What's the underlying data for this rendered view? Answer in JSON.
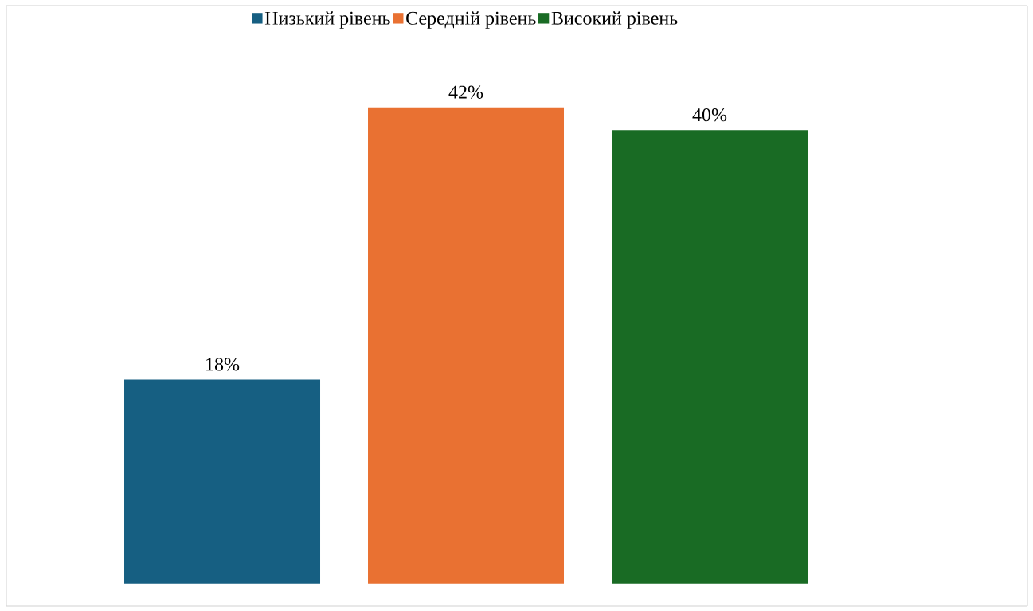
{
  "chart_data": {
    "type": "bar",
    "categories": [
      null
    ],
    "legend": "top",
    "series": [
      {
        "name": "Низький рівень",
        "color": "#165f82",
        "values": [
          18
        ],
        "value_labels": [
          "18%"
        ]
      },
      {
        "name": "Середній рівень",
        "color": "#e97132",
        "values": [
          42
        ],
        "value_labels": [
          "42%"
        ]
      },
      {
        "name": "Високий рівень",
        "color": "#196b24",
        "values": [
          40
        ],
        "value_labels": [
          "40%"
        ]
      }
    ]
  }
}
